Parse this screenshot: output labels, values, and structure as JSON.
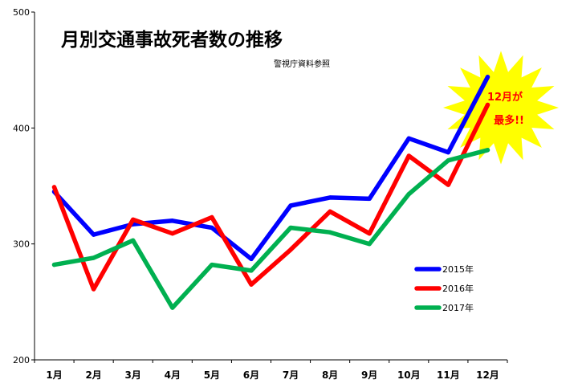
{
  "chart_data": {
    "type": "line",
    "title": "月別交通事故死者数の推移",
    "subtitle": "警視庁資料参照",
    "categories": [
      "1月",
      "2月",
      "3月",
      "4月",
      "5月",
      "6月",
      "7月",
      "8月",
      "9月",
      "10月",
      "11月",
      "12月"
    ],
    "ylim": [
      200,
      500
    ],
    "yticks": [
      "200",
      "300",
      "400",
      "500"
    ],
    "grid": false,
    "legend_position": "right",
    "series": [
      {
        "name": "2015年",
        "color": "#0000ff",
        "values": [
          345,
          308,
          317,
          320,
          314,
          287,
          333,
          340,
          339,
          391,
          379,
          444
        ]
      },
      {
        "name": "2016年",
        "color": "#ff0000",
        "values": [
          349,
          261,
          321,
          309,
          323,
          265,
          295,
          328,
          309,
          376,
          351,
          420
        ]
      },
      {
        "name": "2017年",
        "color": "#00b050",
        "values": [
          282,
          288,
          303,
          245,
          282,
          277,
          314,
          310,
          300,
          343,
          372,
          381
        ]
      }
    ],
    "annotation": {
      "line1": "12月が",
      "line2": "最多!!",
      "fill": "#ffff00",
      "text_color": "#ff0000"
    }
  }
}
